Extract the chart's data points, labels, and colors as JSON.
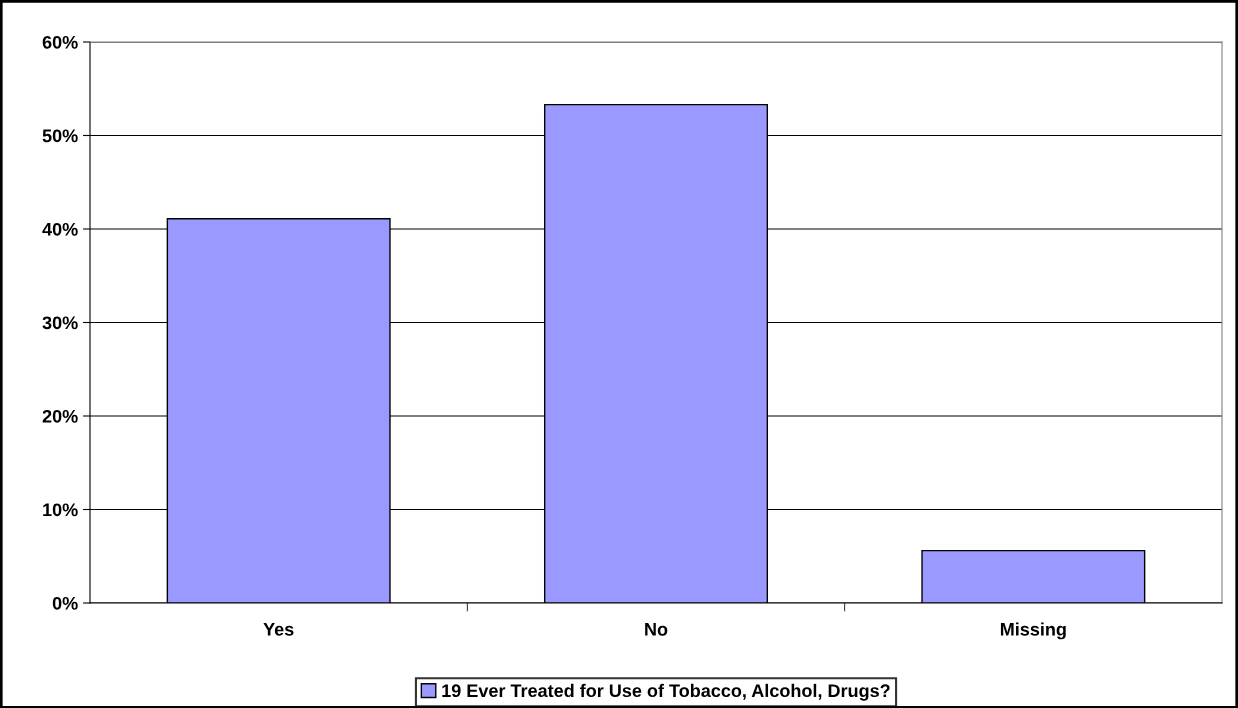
{
  "chart_data": {
    "type": "bar",
    "categories": [
      "Yes",
      "No",
      "Missing"
    ],
    "series": [
      {
        "name": "19 Ever Treated for Use of Tobacco, Alcohol, Drugs?",
        "color": "#9999ff",
        "values": [
          41.1,
          53.3,
          5.6
        ]
      }
    ],
    "ylim": [
      0,
      60
    ],
    "yticks": [
      {
        "value": 0,
        "label": "0%"
      },
      {
        "value": 10,
        "label": "10%"
      },
      {
        "value": 20,
        "label": "20%"
      },
      {
        "value": 30,
        "label": "30%"
      },
      {
        "value": 40,
        "label": "40%"
      },
      {
        "value": 50,
        "label": "50%"
      },
      {
        "value": 60,
        "label": "60%"
      }
    ],
    "grid": "y",
    "legend": "bottom"
  }
}
